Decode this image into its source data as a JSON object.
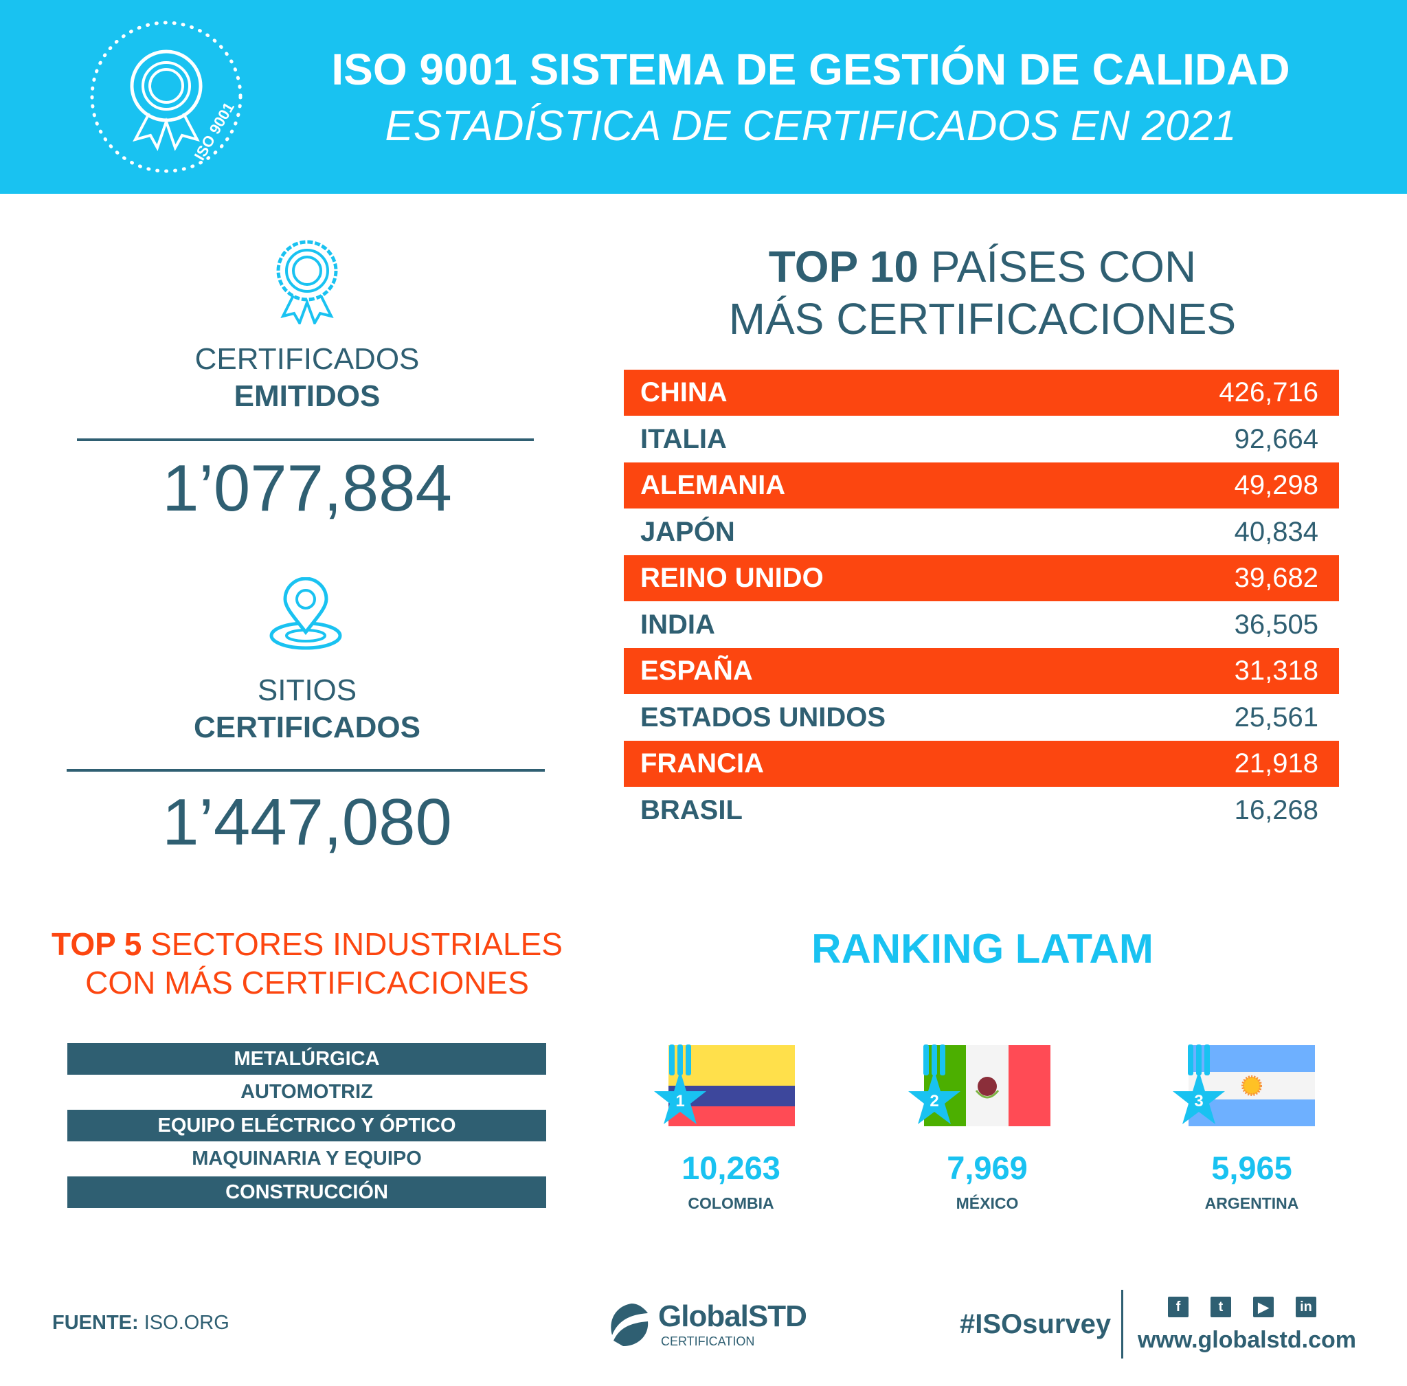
{
  "header": {
    "title": "ISO 9001 SISTEMA DE GESTIÓN DE CALIDAD",
    "subtitle": "ESTADÍSTICA DE CERTIFICADOS EN 2021",
    "badge_text": "ISO 9001"
  },
  "colors": {
    "primary": "#19c2f1",
    "accent": "#fc4610",
    "dark": "#2f5f72"
  },
  "stats": [
    {
      "icon": "award-icon",
      "label_light": "CERTIFICADOS",
      "label_bold": "EMITIDOS",
      "value": "1’077,884"
    },
    {
      "icon": "location-pin-icon",
      "label_light": "SITIOS",
      "label_bold": "CERTIFICADOS",
      "value": "1’447,080"
    }
  ],
  "top10": {
    "title_bold": "TOP 10",
    "title_rest": " PAÍSES CON",
    "title_line2": "MÁS CERTIFICACIONES",
    "rows": [
      {
        "country": "CHINA",
        "value": "426,716"
      },
      {
        "country": "ITALIA",
        "value": "92,664"
      },
      {
        "country": "ALEMANIA",
        "value": "49,298"
      },
      {
        "country": "JAPÓN",
        "value": "40,834"
      },
      {
        "country": "REINO UNIDO",
        "value": "39,682"
      },
      {
        "country": "INDIA",
        "value": "36,505"
      },
      {
        "country": "ESPAÑA",
        "value": "31,318"
      },
      {
        "country": "ESTADOS UNIDOS",
        "value": "25,561"
      },
      {
        "country": "FRANCIA",
        "value": "21,918"
      },
      {
        "country": "BRASIL",
        "value": "16,268"
      }
    ]
  },
  "top5": {
    "title_bold": "TOP 5",
    "title_rest": " SECTORES INDUSTRIALES",
    "title_line2": "CON MÁS CERTIFICACIONES",
    "sectors": [
      "METALÚRGICA",
      "AUTOMOTRIZ",
      "EQUIPO ELÉCTRICO Y ÓPTICO",
      "MAQUINARIA Y EQUIPO",
      "CONSTRUCCIÓN"
    ]
  },
  "latam": {
    "title": "RANKING LATAM",
    "items": [
      {
        "rank": "1",
        "value": "10,263",
        "country": "COLOMBIA"
      },
      {
        "rank": "2",
        "value": "7,969",
        "country": "MÉXICO"
      },
      {
        "rank": "3",
        "value": "5,965",
        "country": "ARGENTINA"
      }
    ]
  },
  "footer": {
    "source_label": "FUENTE:",
    "source_value": "ISO.ORG",
    "logo_name": "GlobalSTD",
    "logo_sub": "CERTIFICATION",
    "hashtag": "#ISOsurvey",
    "website": "www.globalstd.com",
    "social": [
      "facebook-icon",
      "twitter-icon",
      "youtube-icon",
      "linkedin-icon"
    ]
  }
}
